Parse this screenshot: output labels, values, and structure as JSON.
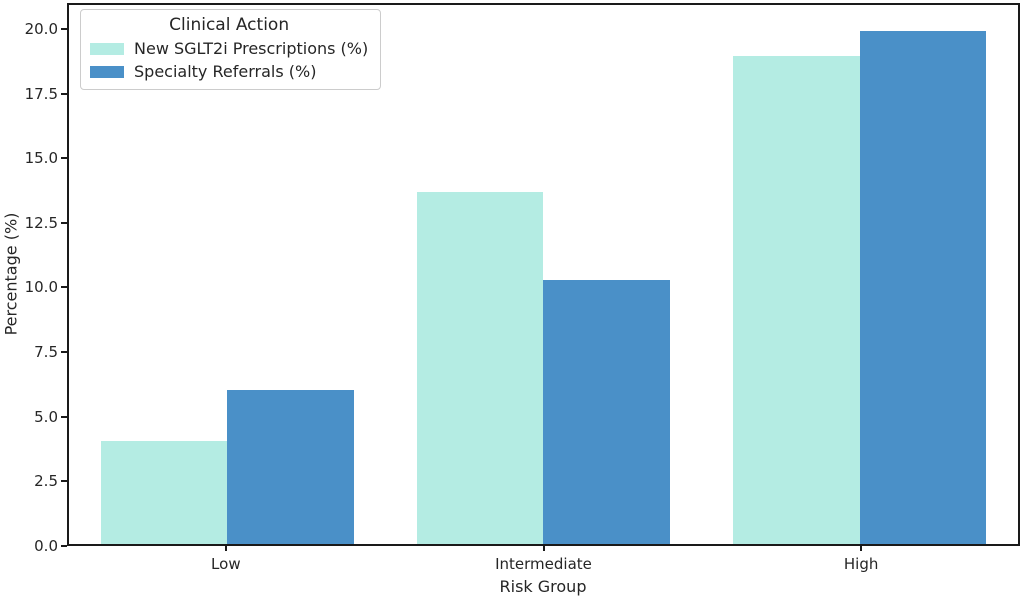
{
  "figure": {
    "background": "#ffffff",
    "spine_color": "#1a1a1a",
    "text_color": "#262626"
  },
  "chart_data": {
    "type": "bar",
    "title": "",
    "categories": [
      "Low",
      "Intermediate",
      "High"
    ],
    "series": [
      {
        "name": "New SGLT2i Prescriptions (%)",
        "color": "#b4ece3",
        "values": [
          4.0,
          13.7,
          19.0
        ]
      },
      {
        "name": "Specialty Referrals (%)",
        "color": "#4a90c8",
        "values": [
          6.0,
          10.3,
          20.0
        ]
      }
    ],
    "xlabel": "Risk Group",
    "ylabel": "Percentage (%)",
    "ylim": [
      0,
      21
    ],
    "yticks": [
      0.0,
      2.5,
      5.0,
      7.5,
      10.0,
      12.5,
      15.0,
      17.5,
      20.0
    ],
    "ytick_labels": [
      "0.0",
      "2.5",
      "5.0",
      "7.5",
      "10.0",
      "12.5",
      "15.0",
      "17.5",
      "20.0"
    ],
    "legend": {
      "title": "Clinical Action",
      "position": "upper left"
    },
    "grid": false,
    "bar_width_fraction": 0.4
  }
}
